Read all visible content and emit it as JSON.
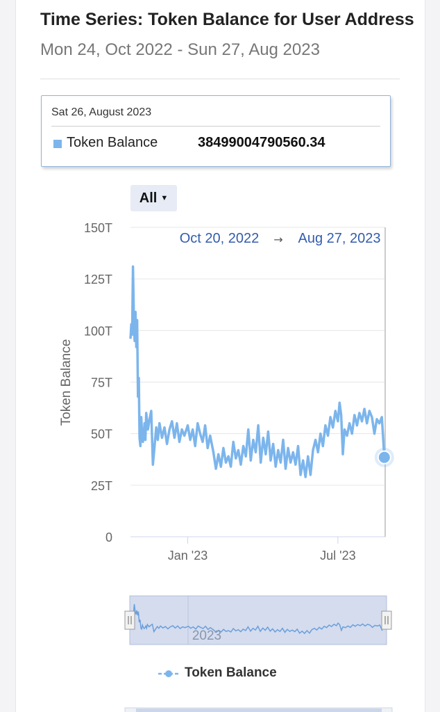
{
  "header": {
    "title": "Time Series: Token Balance for User Address",
    "subtitle": "Mon 24, Oct 2022 - Sun 27, Aug 2023"
  },
  "tooltip": {
    "date": "Sat 26, August 2023",
    "series_name": "Token Balance",
    "value": "38499004790560.34"
  },
  "range_selector": {
    "label": "All",
    "from": "Oct 20, 2022",
    "arrow": "→",
    "to": "Aug 27, 2023"
  },
  "navigator": {
    "label": "2023"
  },
  "legend": {
    "items": [
      {
        "name": "Token Balance",
        "color": "#7cb5ec"
      }
    ]
  },
  "chart_data": {
    "type": "line",
    "ylabel": "Token Balance",
    "ylim": [
      0,
      150
    ],
    "y_ticks": [
      "0",
      "25T",
      "50T",
      "75T",
      "100T",
      "125T",
      "150T"
    ],
    "x_ticks": [
      {
        "label": "Jan '23",
        "date": "2023-01-01"
      },
      {
        "label": "Jul '23",
        "date": "2023-07-01"
      }
    ],
    "x_range": [
      "2022-10-24",
      "2023-08-27"
    ],
    "unit": "T",
    "series": [
      {
        "name": "Token Balance",
        "color": "#7cb5ec",
        "points": [
          [
            "2022-10-24",
            96
          ],
          [
            "2022-10-25",
            103
          ],
          [
            "2022-10-26",
            98
          ],
          [
            "2022-10-27",
            131
          ],
          [
            "2022-10-28",
            108
          ],
          [
            "2022-10-29",
            95
          ],
          [
            "2022-10-30",
            109
          ],
          [
            "2022-10-31",
            92
          ],
          [
            "2022-11-01",
            105
          ],
          [
            "2022-11-02",
            68
          ],
          [
            "2022-11-03",
            77
          ],
          [
            "2022-11-04",
            48
          ],
          [
            "2022-11-05",
            44
          ],
          [
            "2022-11-06",
            58
          ],
          [
            "2022-11-07",
            50
          ],
          [
            "2022-11-08",
            46
          ],
          [
            "2022-11-09",
            49
          ],
          [
            "2022-11-10",
            55
          ],
          [
            "2022-11-11",
            47
          ],
          [
            "2022-11-12",
            60
          ],
          [
            "2022-11-14",
            52
          ],
          [
            "2022-11-16",
            57
          ],
          [
            "2022-11-18",
            61
          ],
          [
            "2022-11-20",
            35
          ],
          [
            "2022-11-22",
            44
          ],
          [
            "2022-11-24",
            53
          ],
          [
            "2022-11-26",
            47
          ],
          [
            "2022-11-28",
            55
          ],
          [
            "2022-12-01",
            48
          ],
          [
            "2022-12-04",
            53
          ],
          [
            "2022-12-07",
            45
          ],
          [
            "2022-12-10",
            52
          ],
          [
            "2022-12-13",
            56
          ],
          [
            "2022-12-16",
            48
          ],
          [
            "2022-12-19",
            55
          ],
          [
            "2022-12-22",
            46
          ],
          [
            "2022-12-25",
            52
          ],
          [
            "2022-12-28",
            49
          ],
          [
            "2023-01-01",
            54
          ],
          [
            "2023-01-04",
            47
          ],
          [
            "2023-01-07",
            52
          ],
          [
            "2023-01-10",
            44
          ],
          [
            "2023-01-13",
            55
          ],
          [
            "2023-01-16",
            50
          ],
          [
            "2023-01-19",
            46
          ],
          [
            "2023-01-22",
            54
          ],
          [
            "2023-01-25",
            43
          ],
          [
            "2023-01-28",
            49
          ],
          [
            "2023-02-01",
            41
          ],
          [
            "2023-02-04",
            33
          ],
          [
            "2023-02-07",
            40
          ],
          [
            "2023-02-10",
            34
          ],
          [
            "2023-02-13",
            43
          ],
          [
            "2023-02-16",
            36
          ],
          [
            "2023-02-19",
            39
          ],
          [
            "2023-02-22",
            34
          ],
          [
            "2023-02-25",
            46
          ],
          [
            "2023-02-28",
            38
          ],
          [
            "2023-03-03",
            42
          ],
          [
            "2023-03-06",
            35
          ],
          [
            "2023-03-09",
            44
          ],
          [
            "2023-03-12",
            39
          ],
          [
            "2023-03-15",
            52
          ],
          [
            "2023-03-18",
            37
          ],
          [
            "2023-03-21",
            47
          ],
          [
            "2023-03-24",
            41
          ],
          [
            "2023-03-27",
            54
          ],
          [
            "2023-03-30",
            36
          ],
          [
            "2023-04-02",
            48
          ],
          [
            "2023-04-05",
            40
          ],
          [
            "2023-04-08",
            51
          ],
          [
            "2023-04-11",
            37
          ],
          [
            "2023-04-14",
            45
          ],
          [
            "2023-04-17",
            34
          ],
          [
            "2023-04-20",
            42
          ],
          [
            "2023-04-23",
            36
          ],
          [
            "2023-04-26",
            47
          ],
          [
            "2023-04-29",
            33
          ],
          [
            "2023-05-02",
            43
          ],
          [
            "2023-05-05",
            36
          ],
          [
            "2023-05-08",
            41
          ],
          [
            "2023-05-11",
            35
          ],
          [
            "2023-05-14",
            44
          ],
          [
            "2023-05-17",
            30
          ],
          [
            "2023-05-20",
            37
          ],
          [
            "2023-05-23",
            29
          ],
          [
            "2023-05-26",
            39
          ],
          [
            "2023-05-29",
            30
          ],
          [
            "2023-06-01",
            42
          ],
          [
            "2023-06-04",
            47
          ],
          [
            "2023-06-07",
            41
          ],
          [
            "2023-06-10",
            50
          ],
          [
            "2023-06-13",
            44
          ],
          [
            "2023-06-16",
            54
          ],
          [
            "2023-06-19",
            49
          ],
          [
            "2023-06-22",
            58
          ],
          [
            "2023-06-25",
            53
          ],
          [
            "2023-06-28",
            61
          ],
          [
            "2023-07-01",
            56
          ],
          [
            "2023-07-03",
            65
          ],
          [
            "2023-07-05",
            59
          ],
          [
            "2023-07-07",
            40
          ],
          [
            "2023-07-09",
            52
          ],
          [
            "2023-07-12",
            49
          ],
          [
            "2023-07-15",
            55
          ],
          [
            "2023-07-18",
            50
          ],
          [
            "2023-07-21",
            59
          ],
          [
            "2023-07-24",
            54
          ],
          [
            "2023-07-27",
            60
          ],
          [
            "2023-07-30",
            56
          ],
          [
            "2023-08-02",
            62
          ],
          [
            "2023-08-05",
            55
          ],
          [
            "2023-08-08",
            61
          ],
          [
            "2023-08-11",
            58
          ],
          [
            "2023-08-14",
            50
          ],
          [
            "2023-08-17",
            57
          ],
          [
            "2023-08-20",
            55
          ],
          [
            "2023-08-23",
            58
          ],
          [
            "2023-08-26",
            38.5
          ]
        ]
      }
    ]
  }
}
